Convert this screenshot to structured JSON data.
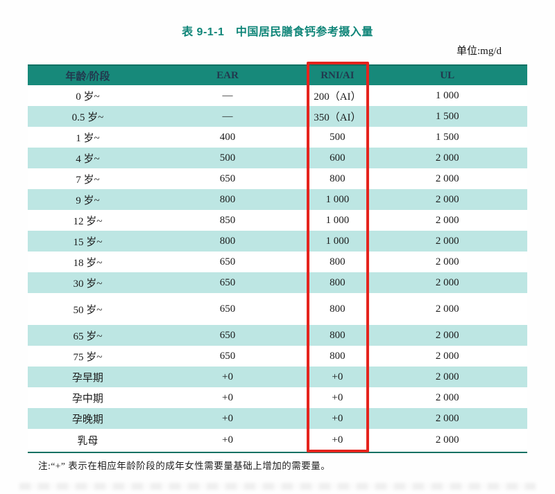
{
  "page": {
    "title": "表 9-1-1　中国居民膳食钙参考摄入量",
    "unit_label": "单位:mg/d",
    "note": "注:“+” 表示在相应年龄阶段的成年女性需要量基础上增加的需要量。"
  },
  "table": {
    "columns": [
      "年龄/阶段",
      "EAR",
      "RNI/AI",
      "UL"
    ],
    "highlighted_column": "RNI/AI",
    "rows": [
      {
        "label": "0 岁~",
        "ear": "—",
        "rni_ai": "200（AI）",
        "ul": "1 000"
      },
      {
        "label": "0.5 岁~",
        "ear": "—",
        "rni_ai": "350（AI）",
        "ul": "1 500"
      },
      {
        "label": "1 岁~",
        "ear": "400",
        "rni_ai": "500",
        "ul": "1 500"
      },
      {
        "label": "4 岁~",
        "ear": "500",
        "rni_ai": "600",
        "ul": "2 000"
      },
      {
        "label": "7 岁~",
        "ear": "650",
        "rni_ai": "800",
        "ul": "2 000"
      },
      {
        "label": "9 岁~",
        "ear": "800",
        "rni_ai": "1 000",
        "ul": "2 000"
      },
      {
        "label": "12 岁~",
        "ear": "850",
        "rni_ai": "1 000",
        "ul": "2 000"
      },
      {
        "label": "15 岁~",
        "ear": "800",
        "rni_ai": "1 000",
        "ul": "2 000"
      },
      {
        "label": "18 岁~",
        "ear": "650",
        "rni_ai": "800",
        "ul": "2 000"
      },
      {
        "label": "30 岁~",
        "ear": "650",
        "rni_ai": "800",
        "ul": "2 000"
      },
      {
        "label": "50 岁~",
        "ear": "650",
        "rni_ai": "800",
        "ul": "2 000"
      },
      {
        "label": "65 岁~",
        "ear": "650",
        "rni_ai": "800",
        "ul": "2 000"
      },
      {
        "label": "75 岁~",
        "ear": "650",
        "rni_ai": "800",
        "ul": "2 000"
      },
      {
        "label": "孕早期",
        "ear": "+0",
        "rni_ai": "+0",
        "ul": "2 000"
      },
      {
        "label": "孕中期",
        "ear": "+0",
        "rni_ai": "+0",
        "ul": "2 000"
      },
      {
        "label": "孕晚期",
        "ear": "+0",
        "rni_ai": "+0",
        "ul": "2 000"
      },
      {
        "label": "乳母",
        "ear": "+0",
        "rni_ai": "+0",
        "ul": "2 000"
      }
    ]
  },
  "colors": {
    "header_bg": "#17897a",
    "header_edge": "#0d7163",
    "row_alt_bg": "#bde6e3",
    "title_color": "#0f8578",
    "header_text": "#22384e",
    "highlight_border": "#e5241d"
  }
}
